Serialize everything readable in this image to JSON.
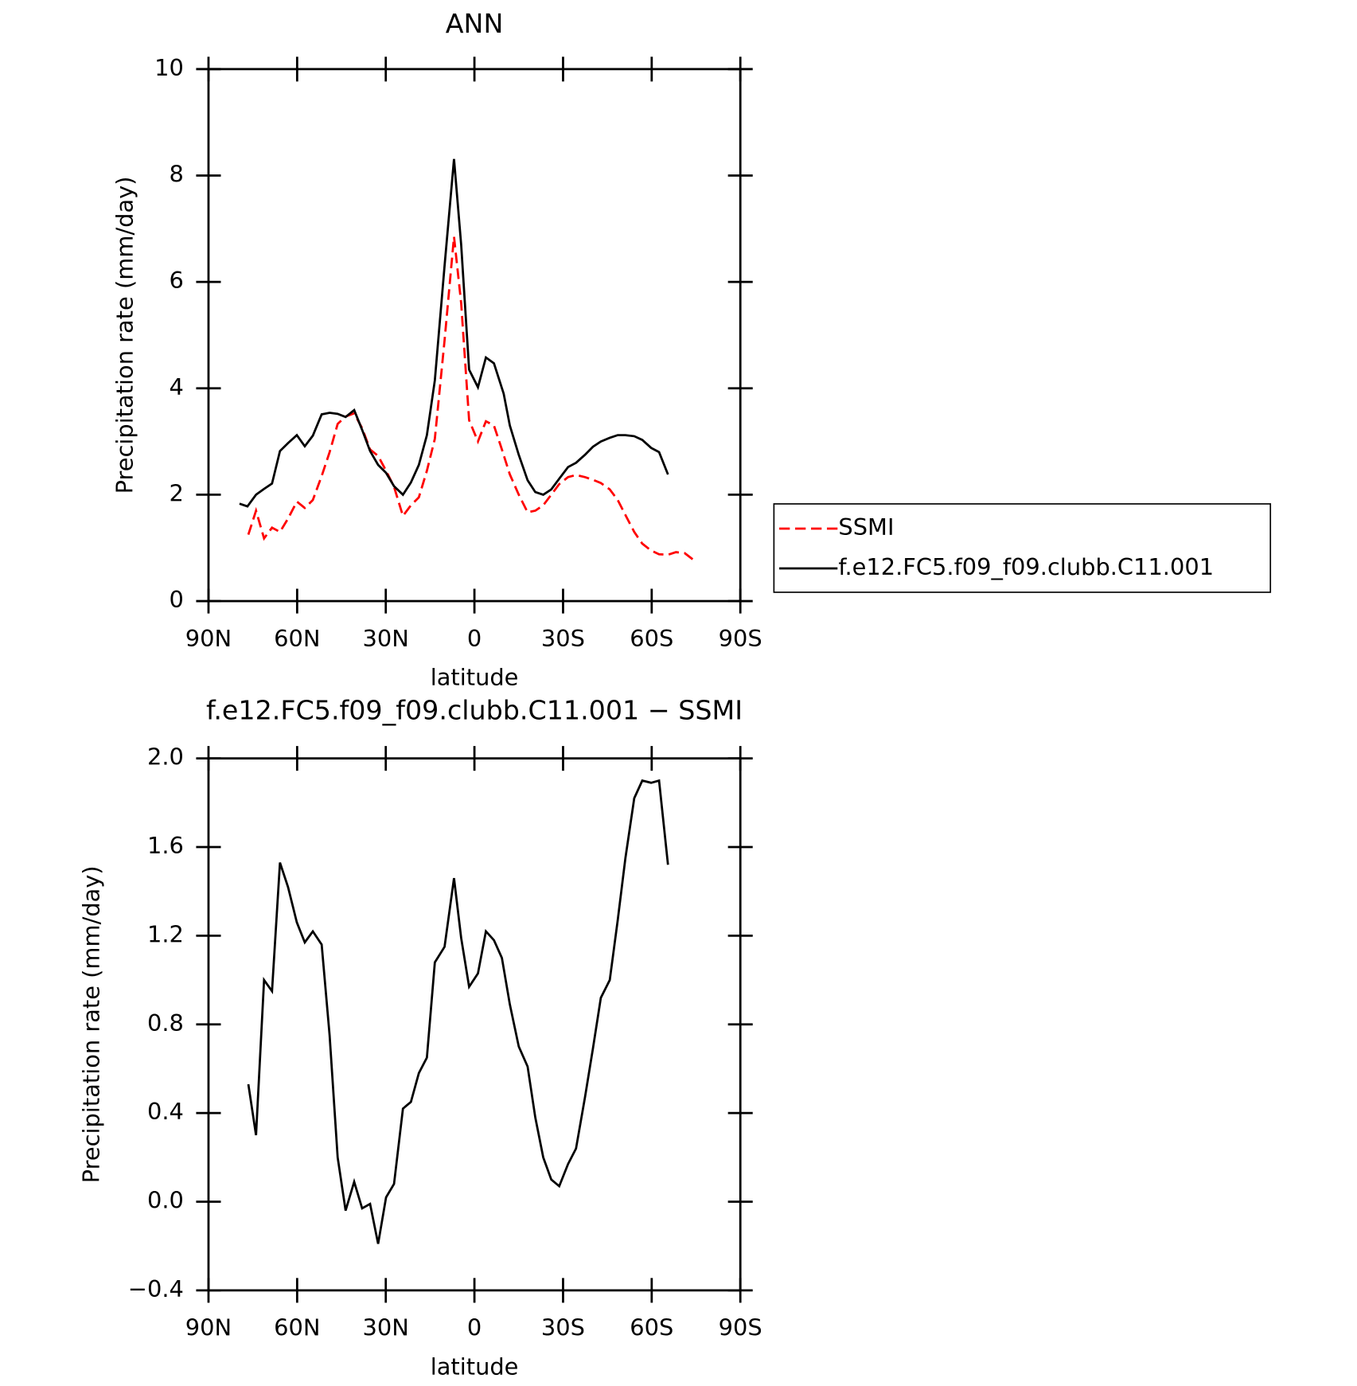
{
  "chart_data": [
    {
      "type": "line",
      "title": "ANN",
      "xlabel": "latitude",
      "ylabel": "Precipitation rate (mm/day)",
      "xlim": [
        90,
        -90
      ],
      "xticks": [
        {
          "value": 90,
          "label": "90N"
        },
        {
          "value": 60,
          "label": "60N"
        },
        {
          "value": 30,
          "label": "30N"
        },
        0,
        {
          "value": -30,
          "label": "30S"
        },
        {
          "value": -60,
          "label": "60S"
        },
        {
          "value": -90,
          "label": "90S"
        }
      ],
      "ylim": [
        0,
        10
      ],
      "yticks": [
        0,
        2,
        4,
        6,
        8,
        10
      ],
      "legend": "right",
      "series": [
        {
          "name": "SSMI",
          "color": "#ff0000",
          "linestyle": "dashed",
          "x": [
            76.5,
            73.9,
            71.2,
            68.5,
            65.8,
            63.1,
            60.1,
            57.4,
            54.7,
            51.7,
            49.0,
            46.3,
            43.6,
            40.7,
            38.0,
            35.3,
            32.6,
            29.9,
            27.2,
            24.2,
            21.5,
            18.8,
            16.1,
            13.4,
            10.1,
            6.9,
            4.5,
            1.8,
            -1.2,
            -3.9,
            -6.6,
            -9.3,
            -12.0,
            -15.0,
            -18.0,
            -20.6,
            -23.3,
            -26.0,
            -28.7,
            -31.7,
            -34.4,
            -37.4,
            -40.1,
            -42.8,
            -45.8,
            -48.5,
            -51.1,
            -54.1,
            -56.8,
            -59.8,
            -62.5,
            -65.5,
            -68.2,
            -71.2,
            -74.2
          ],
          "values": [
            1.25,
            1.7,
            1.18,
            1.38,
            1.3,
            1.55,
            1.87,
            1.75,
            1.9,
            2.35,
            2.8,
            3.33,
            3.47,
            3.53,
            3.25,
            2.85,
            2.73,
            2.45,
            2.15,
            1.6,
            1.8,
            1.95,
            2.45,
            3.05,
            4.9,
            6.85,
            5.6,
            3.4,
            3.0,
            3.38,
            3.3,
            2.85,
            2.38,
            2.0,
            1.67,
            1.7,
            1.8,
            2.0,
            2.2,
            2.33,
            2.37,
            2.33,
            2.28,
            2.22,
            2.1,
            1.9,
            1.62,
            1.3,
            1.08,
            0.95,
            0.88,
            0.87,
            0.92,
            0.9,
            0.77
          ]
        },
        {
          "name": "f.e12.FC5.f09_f09.clubb.C11.001",
          "color": "#000000",
          "linestyle": "solid",
          "x": [
            79.5,
            76.8,
            73.9,
            71.2,
            68.5,
            65.8,
            63.1,
            60.1,
            57.4,
            54.7,
            51.7,
            49.0,
            46.3,
            43.6,
            40.7,
            38.0,
            35.3,
            32.6,
            29.9,
            27.2,
            24.2,
            21.5,
            18.8,
            16.1,
            13.4,
            10.1,
            6.9,
            4.5,
            1.8,
            -1.2,
            -3.9,
            -6.6,
            -9.9,
            -12.0,
            -15.0,
            -18.0,
            -20.6,
            -23.3,
            -26.0,
            -28.7,
            -31.7,
            -34.4,
            -37.4,
            -40.1,
            -42.8,
            -45.8,
            -48.5,
            -51.1,
            -54.1,
            -56.8,
            -59.8,
            -62.5,
            -65.5
          ],
          "values": [
            1.83,
            1.78,
            2.0,
            2.11,
            2.21,
            2.82,
            2.97,
            3.12,
            2.91,
            3.11,
            3.51,
            3.54,
            3.52,
            3.46,
            3.59,
            3.22,
            2.82,
            2.56,
            2.41,
            2.16,
            2.0,
            2.23,
            2.56,
            3.12,
            4.15,
            6.3,
            8.31,
            6.7,
            4.35,
            4.02,
            4.58,
            4.47,
            3.9,
            3.3,
            2.75,
            2.27,
            2.05,
            2.0,
            2.1,
            2.3,
            2.52,
            2.6,
            2.75,
            2.9,
            3.0,
            3.07,
            3.12,
            3.12,
            3.1,
            3.03,
            2.88,
            2.8,
            2.38
          ]
        }
      ]
    },
    {
      "type": "line",
      "title": "f.e12.FC5.f09_f09.clubb.C11.001 − SSMI",
      "xlabel": "latitude",
      "ylabel": "Precipitation rate (mm/day)",
      "xlim": [
        90,
        -90
      ],
      "xticks": [
        {
          "value": 90,
          "label": "90N"
        },
        {
          "value": 60,
          "label": "60N"
        },
        {
          "value": 30,
          "label": "30N"
        },
        0,
        {
          "value": -30,
          "label": "30S"
        },
        {
          "value": -60,
          "label": "60S"
        },
        {
          "value": -90,
          "label": "90S"
        }
      ],
      "ylim": [
        -0.4,
        2.0
      ],
      "yticks": [
        {
          "value": -0.4,
          "label": "−0.4"
        },
        {
          "value": 0,
          "label": "0.0"
        },
        {
          "value": 0.4,
          "label": "0.4"
        },
        {
          "value": 0.8,
          "label": "0.8"
        },
        {
          "value": 1.2,
          "label": "1.2"
        },
        {
          "value": 1.6,
          "label": "1.6"
        },
        {
          "value": 2.0,
          "label": "2.0"
        }
      ],
      "series": [
        {
          "color": "#000000",
          "linestyle": "solid",
          "x": [
            76.5,
            73.9,
            71.2,
            68.5,
            65.8,
            63.1,
            60.1,
            57.4,
            54.7,
            51.7,
            49.0,
            46.3,
            43.6,
            40.7,
            38.0,
            35.3,
            32.6,
            29.9,
            27.2,
            24.2,
            21.5,
            18.8,
            16.1,
            13.4,
            10.1,
            6.9,
            4.5,
            1.8,
            -1.2,
            -3.9,
            -6.6,
            -9.3,
            -12.0,
            -15.0,
            -18.0,
            -20.6,
            -23.3,
            -26.0,
            -28.7,
            -31.7,
            -34.4,
            -37.4,
            -40.1,
            -42.8,
            -45.8,
            -48.5,
            -51.1,
            -54.1,
            -56.8,
            -59.8,
            -62.5,
            -65.5
          ],
          "values": [
            0.53,
            0.3,
            1.0,
            0.95,
            1.53,
            1.42,
            1.26,
            1.17,
            1.22,
            1.16,
            0.75,
            0.2,
            -0.04,
            0.09,
            -0.03,
            -0.01,
            -0.19,
            0.02,
            0.08,
            0.42,
            0.45,
            0.58,
            0.65,
            1.08,
            1.15,
            1.46,
            1.19,
            0.97,
            1.03,
            1.22,
            1.18,
            1.1,
            0.89,
            0.7,
            0.61,
            0.38,
            0.2,
            0.1,
            0.07,
            0.17,
            0.24,
            0.47,
            0.69,
            0.92,
            1.0,
            1.27,
            1.55,
            1.82,
            1.9,
            1.89,
            1.9,
            1.52
          ]
        }
      ]
    }
  ]
}
